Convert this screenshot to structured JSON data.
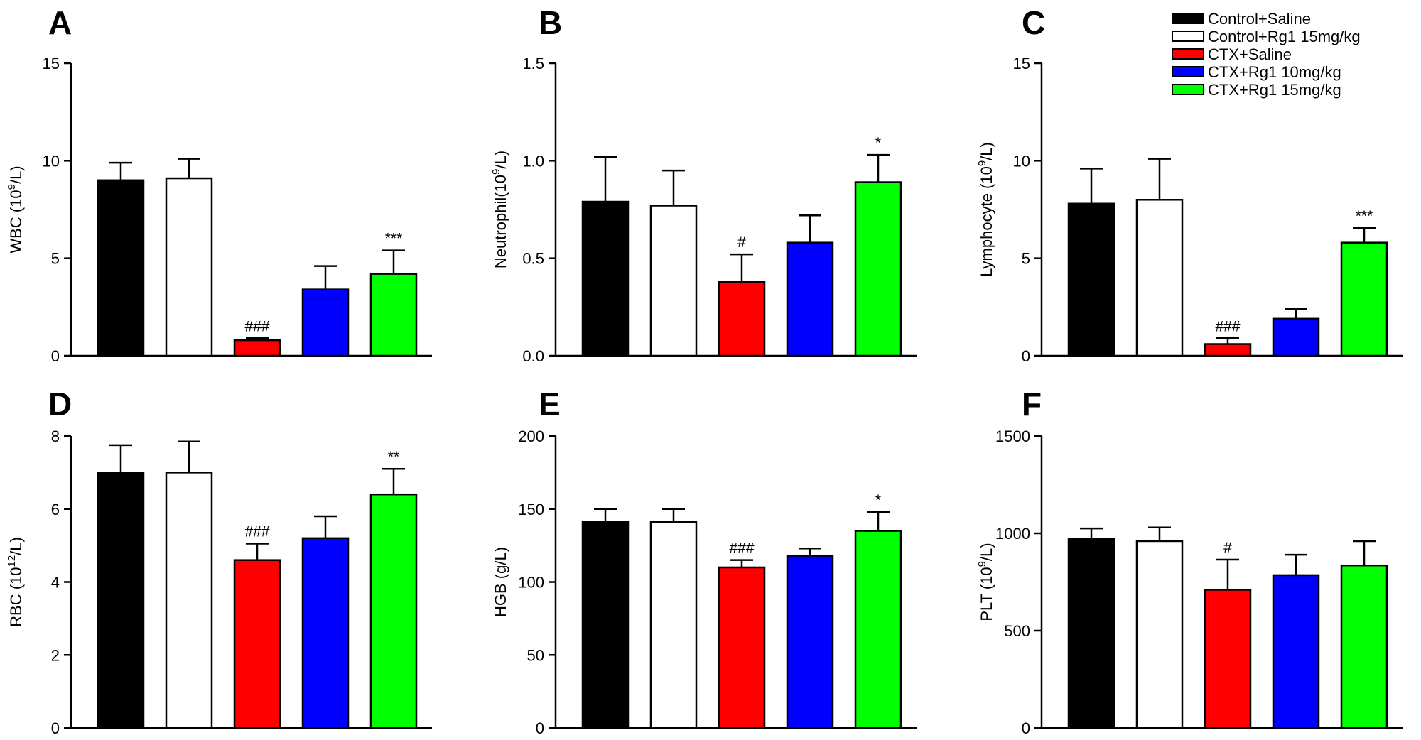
{
  "legend": [
    {
      "label": "Control+Saline",
      "color": "#000000"
    },
    {
      "label": "Control+Rg1 15mg/kg",
      "color": "#ffffff"
    },
    {
      "label": "CTX+Saline",
      "color": "#ff0000"
    },
    {
      "label": "CTX+Rg1 10mg/kg",
      "color": "#0000ff"
    },
    {
      "label": "CTX+Rg1 15mg/kg",
      "color": "#00ff00"
    }
  ],
  "chart_data": [
    {
      "panel": "A",
      "type": "bar",
      "title": "",
      "ylabel": "WBC (10",
      "ylabel_sup": "9",
      "ylabel_end": "/L)",
      "ylim": [
        0,
        15
      ],
      "yticks": [
        "0",
        "5",
        "10",
        "15"
      ],
      "categories": [
        "Control+Saline",
        "Control+Rg1 15mg/kg",
        "CTX+Saline",
        "CTX+Rg1 10mg/kg",
        "CTX+Rg1 15mg/kg"
      ],
      "values": [
        9.0,
        9.1,
        0.8,
        3.4,
        4.2
      ],
      "errors": [
        0.9,
        1.0,
        0.1,
        1.2,
        1.2
      ],
      "annotations": [
        "",
        "",
        "###",
        "",
        "***"
      ]
    },
    {
      "panel": "B",
      "type": "bar",
      "title": "",
      "ylabel": "Neutrophil(10",
      "ylabel_sup": "9",
      "ylabel_end": "/L)",
      "ylim": [
        0,
        1.5
      ],
      "yticks": [
        "0.0",
        "0.5",
        "1.0",
        "1.5"
      ],
      "categories": [
        "Control+Saline",
        "Control+Rg1 15mg/kg",
        "CTX+Saline",
        "CTX+Rg1 10mg/kg",
        "CTX+Rg1 15mg/kg"
      ],
      "values": [
        0.79,
        0.77,
        0.38,
        0.58,
        0.89
      ],
      "errors": [
        0.23,
        0.18,
        0.14,
        0.14,
        0.14
      ],
      "annotations": [
        "",
        "",
        "#",
        "",
        "*"
      ]
    },
    {
      "panel": "C",
      "type": "bar",
      "title": "",
      "ylabel": "Lymphocyte (10",
      "ylabel_sup": "9",
      "ylabel_end": "/L)",
      "ylim": [
        0,
        15
      ],
      "yticks": [
        "0",
        "5",
        "10",
        "15"
      ],
      "categories": [
        "Control+Saline",
        "Control+Rg1 15mg/kg",
        "CTX+Saline",
        "CTX+Rg1 10mg/kg",
        "CTX+Rg1 15mg/kg"
      ],
      "values": [
        7.8,
        8.0,
        0.6,
        1.9,
        5.8
      ],
      "errors": [
        1.8,
        2.1,
        0.3,
        0.5,
        0.75
      ],
      "annotations": [
        "",
        "",
        "###",
        "",
        "***"
      ]
    },
    {
      "panel": "D",
      "type": "bar",
      "title": "",
      "ylabel": "RBC (10",
      "ylabel_sup": "12",
      "ylabel_end": "/L)",
      "ylim": [
        0,
        8
      ],
      "yticks": [
        "0",
        "2",
        "4",
        "6",
        "8"
      ],
      "categories": [
        "Control+Saline",
        "Control+Rg1 15mg/kg",
        "CTX+Saline",
        "CTX+Rg1 10mg/kg",
        "CTX+Rg1 15mg/kg"
      ],
      "values": [
        7.0,
        7.0,
        4.6,
        5.2,
        6.4
      ],
      "errors": [
        0.75,
        0.85,
        0.45,
        0.6,
        0.7
      ],
      "annotations": [
        "",
        "",
        "###",
        "",
        "**"
      ]
    },
    {
      "panel": "E",
      "type": "bar",
      "title": "",
      "ylabel": "HGB (g/L)",
      "ylabel_sup": "",
      "ylabel_end": "",
      "ylim": [
        0,
        200
      ],
      "yticks": [
        "0",
        "50",
        "100",
        "150",
        "200"
      ],
      "categories": [
        "Control+Saline",
        "Control+Rg1 15mg/kg",
        "CTX+Saline",
        "CTX+Rg1 10mg/kg",
        "CTX+Rg1 15mg/kg"
      ],
      "values": [
        141,
        141,
        110,
        118,
        135
      ],
      "errors": [
        9,
        9,
        5,
        5,
        13
      ],
      "annotations": [
        "",
        "",
        "###",
        "",
        "*"
      ]
    },
    {
      "panel": "F",
      "type": "bar",
      "title": "",
      "ylabel": "PLT (10",
      "ylabel_sup": "9",
      "ylabel_end": "/L)",
      "ylim": [
        0,
        1500
      ],
      "yticks": [
        "0",
        "500",
        "1000",
        "1500"
      ],
      "categories": [
        "Control+Saline",
        "Control+Rg1 15mg/kg",
        "CTX+Saline",
        "CTX+Rg1 10mg/kg",
        "CTX+Rg1 15mg/kg"
      ],
      "values": [
        970,
        960,
        710,
        785,
        835
      ],
      "errors": [
        55,
        70,
        155,
        105,
        125
      ],
      "annotations": [
        "",
        "",
        "#",
        "",
        ""
      ]
    }
  ]
}
